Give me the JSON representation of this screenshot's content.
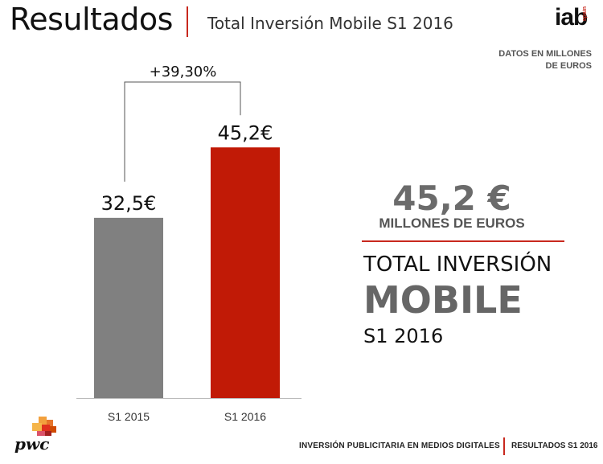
{
  "header": {
    "title": "Resultados",
    "subtitle": "Total Inversión Mobile S1 2016",
    "logo_text": "iab",
    "logo_sub": "spain"
  },
  "note": "DATOS EN MILLONES DE EUROS",
  "chart_data": {
    "type": "bar",
    "categories": [
      "S1 2015",
      "S1 2016"
    ],
    "values": [
      32.5,
      45.2
    ],
    "data_labels": [
      "32,5€",
      "45,2€"
    ],
    "colors": [
      "#808080",
      "#c11a06"
    ],
    "growth_label": "+39,30%",
    "ylim": [
      0,
      52.2
    ],
    "grid": false,
    "title": "",
    "xlabel": "",
    "ylabel": ""
  },
  "kpi": {
    "value": "45,2 €",
    "unit": "MILLONES DE EUROS",
    "line1": "TOTAL INVERSIÓN",
    "line2": "MOBILE",
    "line3": "S1 2016"
  },
  "footer": {
    "brand": "pwc",
    "left": "INVERSIÓN PUBLICITARIA EN MEDIOS DIGITALES",
    "right": "RESULTADOS S1 2016"
  },
  "colors": {
    "accent": "#c8281e",
    "bar_2015": "#808080",
    "bar_2016": "#c11a06"
  }
}
